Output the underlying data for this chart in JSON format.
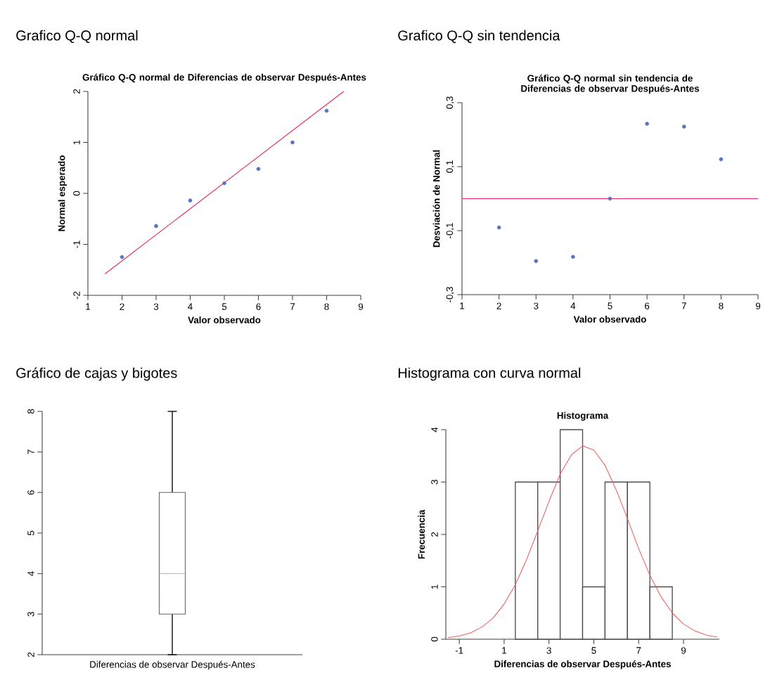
{
  "chart_data": [
    {
      "type": "scatter",
      "title": "Grafico Q-Q normal",
      "subtitle": "Gráfico Q-Q normal de Diferencias de observar Después-Antes",
      "xlabel": "Valor observado",
      "ylabel": "Normal esperado",
      "xlim": [
        1,
        9
      ],
      "ylim": [
        -2,
        2
      ],
      "xticks": [
        1,
        2,
        3,
        4,
        5,
        6,
        7,
        8,
        9
      ],
      "yticks": [
        -2,
        -1,
        0,
        1,
        2
      ],
      "series": [
        {
          "type": "scatter",
          "marker": "circle",
          "x": [
            2,
            3,
            4,
            5,
            6,
            7,
            8
          ],
          "values": [
            -1.25,
            -0.64,
            -0.14,
            0.2,
            0.48,
            1.0,
            1.62
          ],
          "color": "#5b72c0"
        },
        {
          "type": "line",
          "x": [
            1.5,
            8.5
          ],
          "values": [
            -1.58,
            2.0
          ],
          "color": "#e8265e"
        }
      ]
    },
    {
      "type": "scatter",
      "title": "Grafico Q-Q sin tendencia",
      "subtitle": "Gráfico Q-Q normal sin tendencia de Diferencias de observar Después-Antes",
      "xlabel": "Valor observado",
      "ylabel": "Desviación de Normal",
      "xlim": [
        1,
        9
      ],
      "ylim": [
        -0.3,
        0.3
      ],
      "xticks": [
        1,
        2,
        3,
        4,
        5,
        6,
        7,
        8,
        9
      ],
      "yticks": [
        {
          "value": -0.3,
          "label": "-0,3"
        },
        {
          "value": -0.1,
          "label": "-0,1"
        },
        {
          "value": 0.1,
          "label": "0,1"
        },
        {
          "value": 0.3,
          "label": "0,3"
        }
      ],
      "series": [
        {
          "type": "scatter",
          "marker": "circle",
          "x": [
            2,
            3,
            4,
            5,
            6,
            7,
            8
          ],
          "values": [
            -0.09,
            -0.195,
            -0.182,
            0.0,
            0.234,
            0.225,
            0.123
          ],
          "color": "#5b72c0"
        }
      ],
      "ref_lines": [
        {
          "axis": "y",
          "value": 0,
          "color": "#e8265e"
        }
      ]
    },
    {
      "type": "box",
      "title": "Gráfico de cajas y bigotes",
      "categories": [
        "Diferencias de observar Después-Antes"
      ],
      "ylim": [
        2,
        8
      ],
      "yticks": [
        2,
        3,
        4,
        5,
        6,
        7,
        8
      ],
      "boxes": [
        {
          "low": 2,
          "q1": 3,
          "median": 4,
          "q3": 6,
          "high": 8
        }
      ]
    },
    {
      "type": "histogram",
      "title": "Histograma con curva normal",
      "subtitle": "Histograma",
      "xlabel": "Diferencias de observar Después-Antes",
      "ylabel": "Frecuencia",
      "xlim": [
        -1.6,
        10.6
      ],
      "ylim": [
        0,
        4
      ],
      "xticks": [
        -1,
        1,
        3,
        5,
        7,
        9
      ],
      "yticks": [
        0,
        1,
        2,
        3,
        4
      ],
      "bins": [
        1.5,
        2.5,
        3.5,
        4.5,
        5.5,
        6.5,
        7.5,
        8.5
      ],
      "values": [
        3,
        3,
        4,
        1,
        3,
        3,
        1
      ],
      "color": "#ffffff",
      "series": [
        {
          "type": "line",
          "x": [
            -1.5,
            -1,
            -0.5,
            0,
            0.5,
            1,
            1.5,
            2,
            2.5,
            3,
            3.5,
            4,
            4.5,
            5,
            5.5,
            6,
            6.5,
            7,
            7.5,
            8,
            8.5,
            9,
            9.5,
            10,
            10.5
          ],
          "values": [
            0.03,
            0.06,
            0.12,
            0.23,
            0.4,
            0.67,
            1.04,
            1.52,
            2.07,
            2.63,
            3.15,
            3.52,
            3.69,
            3.61,
            3.32,
            2.85,
            2.3,
            1.73,
            1.22,
            0.81,
            0.5,
            0.29,
            0.16,
            0.08,
            0.04
          ],
          "color": "#f06060"
        }
      ]
    }
  ]
}
